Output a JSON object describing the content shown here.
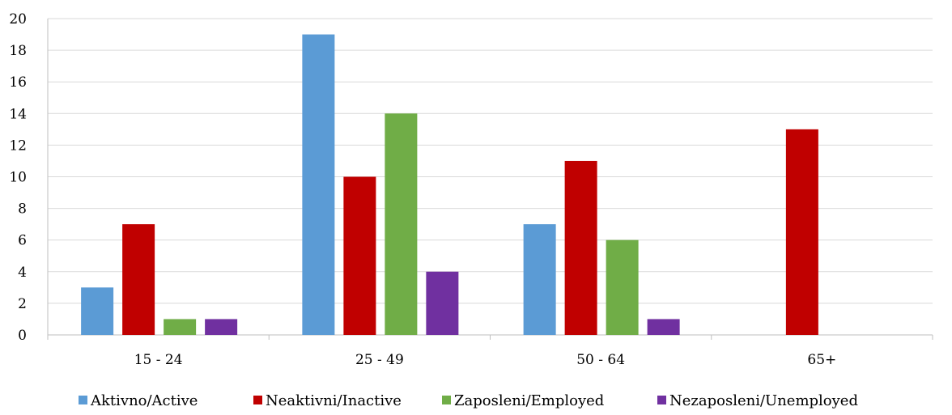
{
  "chart_data": {
    "type": "bar",
    "title": "",
    "xlabel": "",
    "ylabel": "",
    "categories": [
      "15 - 24",
      "25 - 49",
      "50 - 64",
      "65+"
    ],
    "ylim": [
      0,
      20
    ],
    "yticks": [
      0,
      2,
      4,
      6,
      8,
      10,
      12,
      14,
      16,
      18,
      20
    ],
    "grid": true,
    "legend_position": "bottom",
    "series": [
      {
        "name": "Aktivno/Active",
        "color": "#5B9BD5",
        "values": [
          3,
          19,
          7,
          0
        ]
      },
      {
        "name": "Neaktivni/Inactive",
        "color": "#C00000",
        "values": [
          7,
          10,
          11,
          13
        ]
      },
      {
        "name": "Zaposleni/Employed",
        "color": "#70AD47",
        "values": [
          1,
          14,
          6,
          0
        ]
      },
      {
        "name": "Nezaposleni/Unemployed",
        "color": "#7030A0",
        "values": [
          1,
          4,
          1,
          0
        ]
      }
    ]
  }
}
